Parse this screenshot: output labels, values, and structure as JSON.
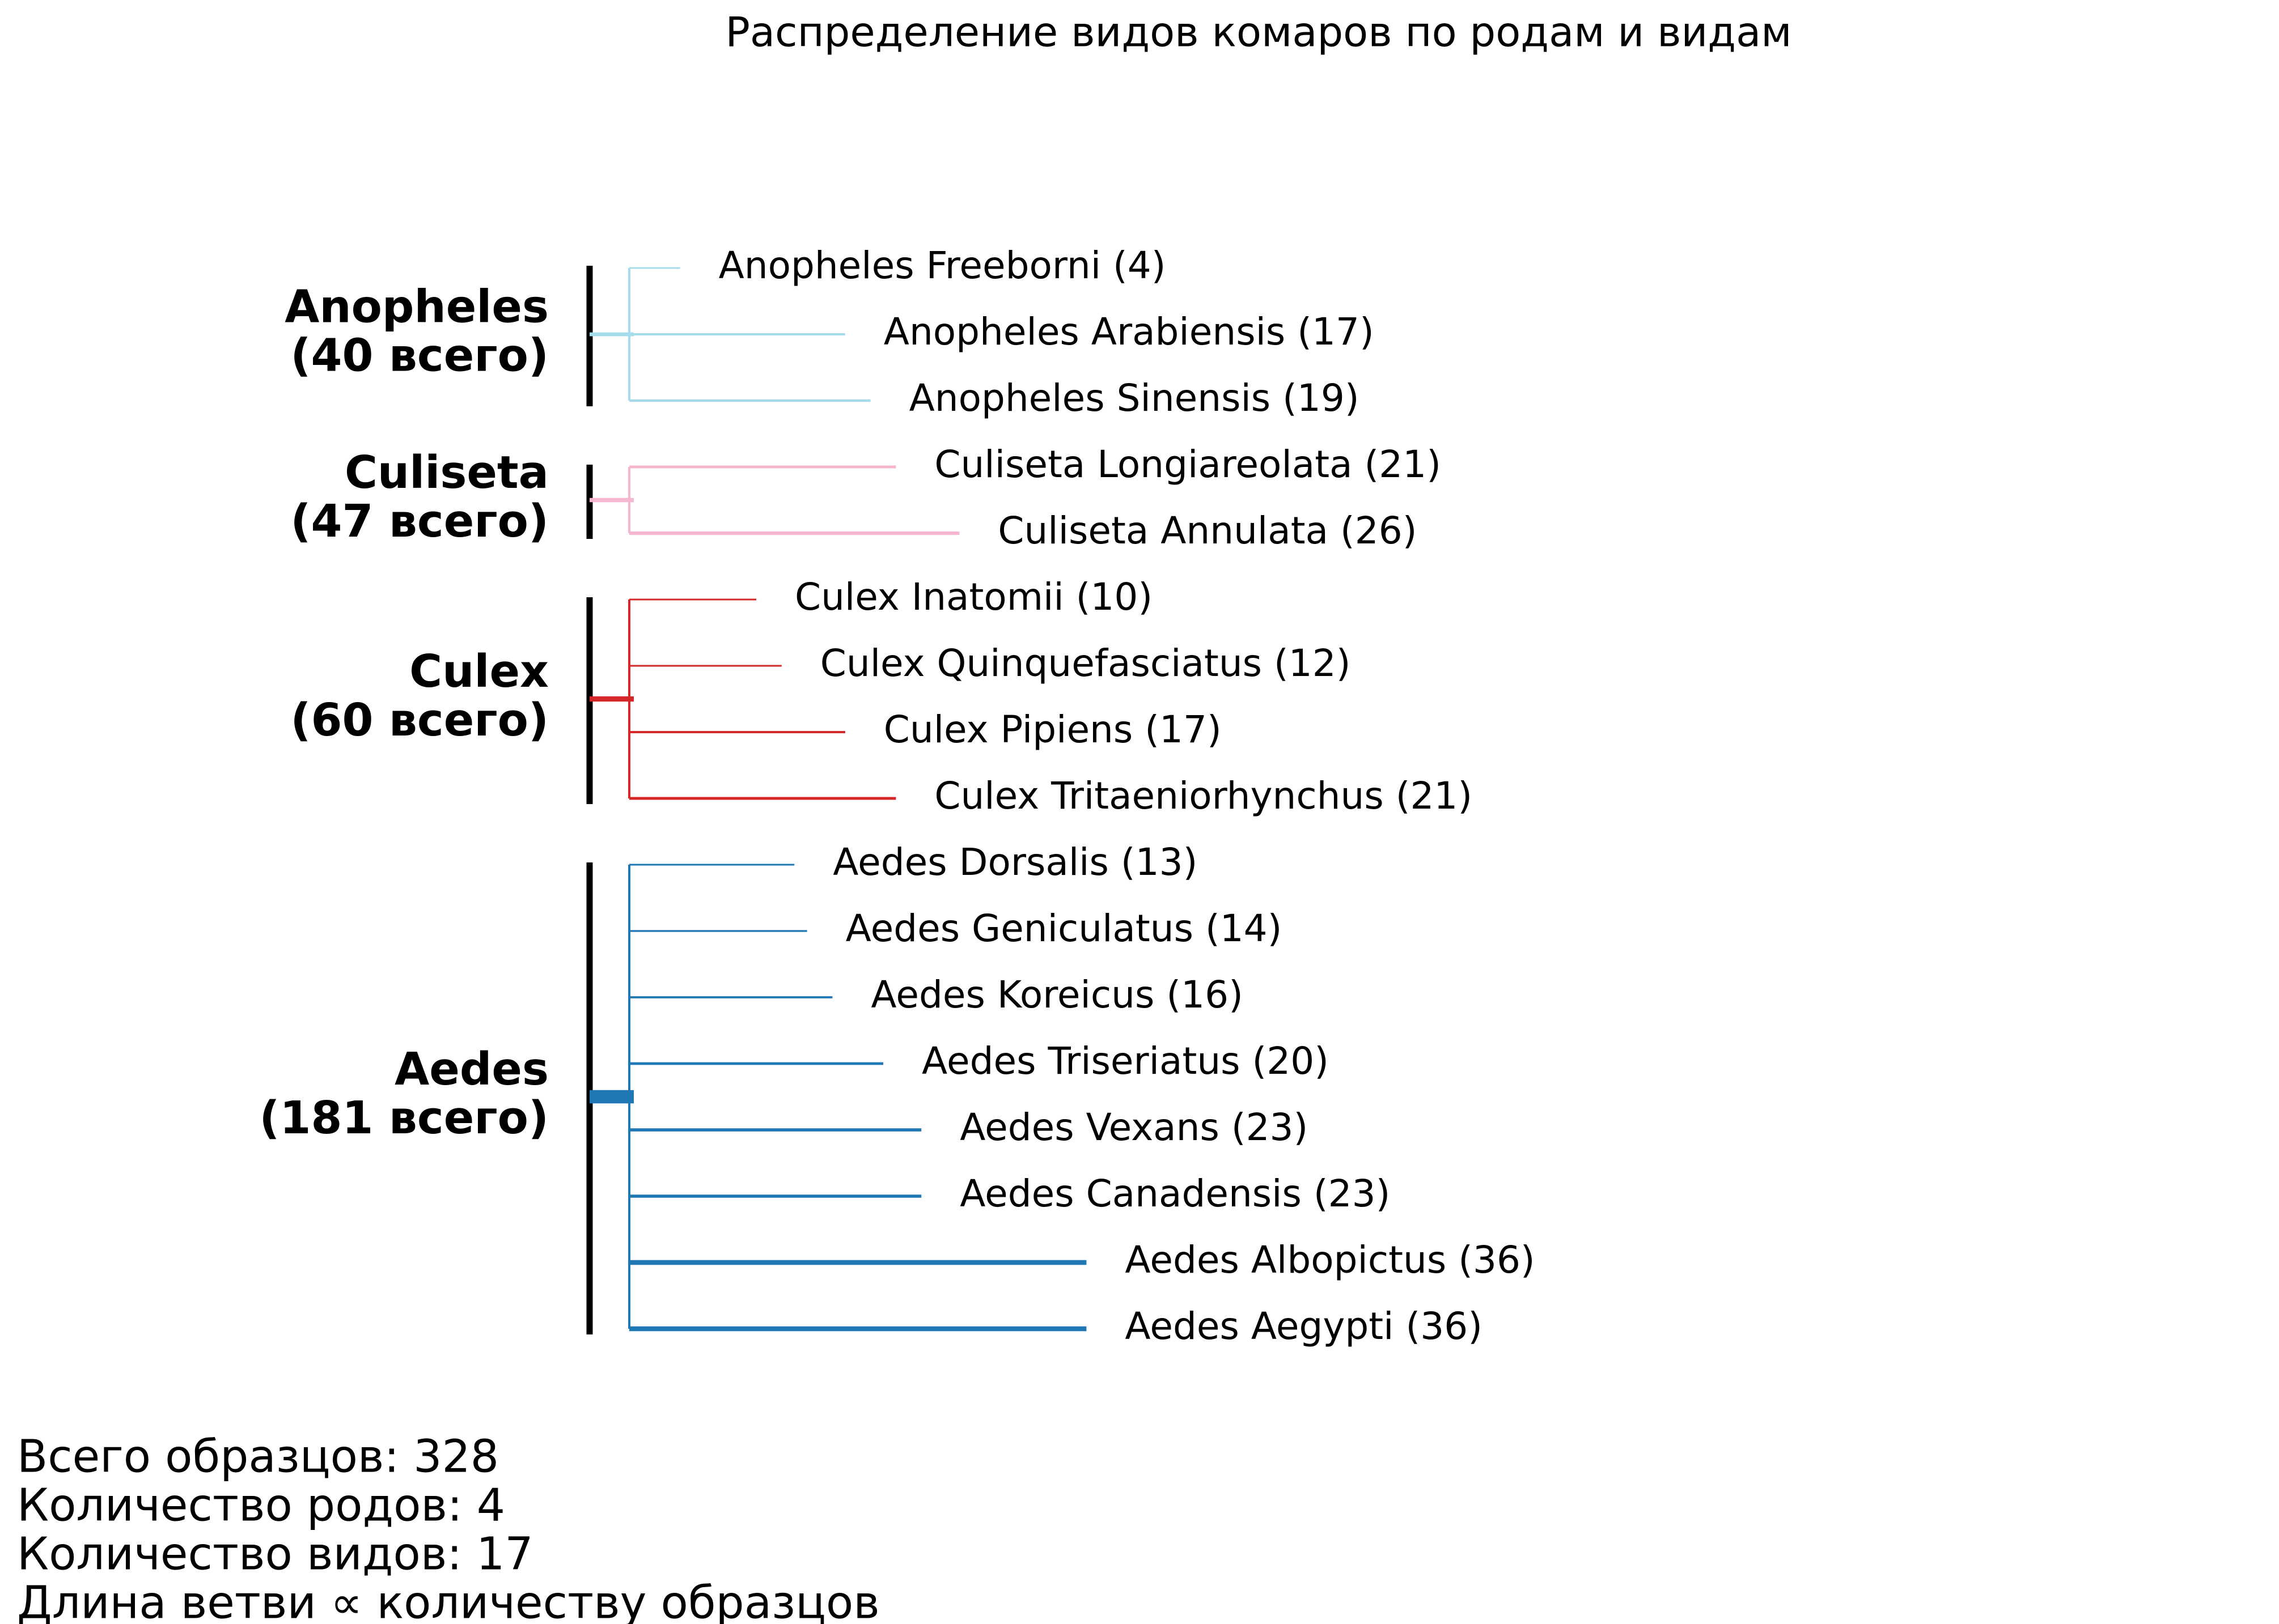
{
  "title": "Распределение видов комаров по родам и видам",
  "genera": [
    {
      "name": "Anopheles",
      "total_label": "(40 всего)",
      "total": 40,
      "color": "#a6dcea",
      "species": [
        {
          "name": "Anopheles Freeborni",
          "count": 4,
          "label": "Anopheles Freeborni (4)"
        },
        {
          "name": "Anopheles Arabiensis",
          "count": 17,
          "label": "Anopheles Arabiensis (17)"
        },
        {
          "name": "Anopheles Sinensis",
          "count": 19,
          "label": "Anopheles Sinensis (19)"
        }
      ]
    },
    {
      "name": "Culiseta",
      "total_label": "(47 всего)",
      "total": 47,
      "color": "#f7b6cf",
      "species": [
        {
          "name": "Culiseta Longiareolata",
          "count": 21,
          "label": "Culiseta Longiareolata (21)"
        },
        {
          "name": "Culiseta Annulata",
          "count": 26,
          "label": "Culiseta Annulata (26)"
        }
      ]
    },
    {
      "name": "Culex",
      "total_label": "(60 всего)",
      "total": 60,
      "color": "#d62728",
      "species": [
        {
          "name": "Culex Inatomii",
          "count": 10,
          "label": "Culex Inatomii (10)"
        },
        {
          "name": "Culex Quinquefasciatus",
          "count": 12,
          "label": "Culex Quinquefasciatus (12)"
        },
        {
          "name": "Culex Pipiens",
          "count": 17,
          "label": "Culex Pipiens (17)"
        },
        {
          "name": "Culex Tritaeniorhynchus",
          "count": 21,
          "label": "Culex Tritaeniorhynchus (21)"
        }
      ]
    },
    {
      "name": "Aedes",
      "total_label": "(181 всего)",
      "total": 181,
      "color": "#1f77b4",
      "species": [
        {
          "name": "Aedes Dorsalis",
          "count": 13,
          "label": "Aedes Dorsalis (13)"
        },
        {
          "name": "Aedes Geniculatus",
          "count": 14,
          "label": "Aedes Geniculatus (14)"
        },
        {
          "name": "Aedes Koreicus",
          "count": 16,
          "label": "Aedes Koreicus (16)"
        },
        {
          "name": "Aedes Triseriatus",
          "count": 20,
          "label": "Aedes Triseriatus (20)"
        },
        {
          "name": "Aedes Vexans",
          "count": 23,
          "label": "Aedes Vexans (23)"
        },
        {
          "name": "Aedes Canadensis",
          "count": 23,
          "label": "Aedes Canadensis (23)"
        },
        {
          "name": "Aedes Albopictus",
          "count": 36,
          "label": "Aedes Albopictus (36)"
        },
        {
          "name": "Aedes Aegypti",
          "count": 36,
          "label": "Aedes Aegypti (36)"
        }
      ]
    }
  ],
  "stats": {
    "total_samples": "Всего образцов: 328",
    "genus_count": "Количество родов: 4",
    "species_count": "Количество видов: 17",
    "branch_note": "Длина ветви ∝ количеству образцов"
  }
}
